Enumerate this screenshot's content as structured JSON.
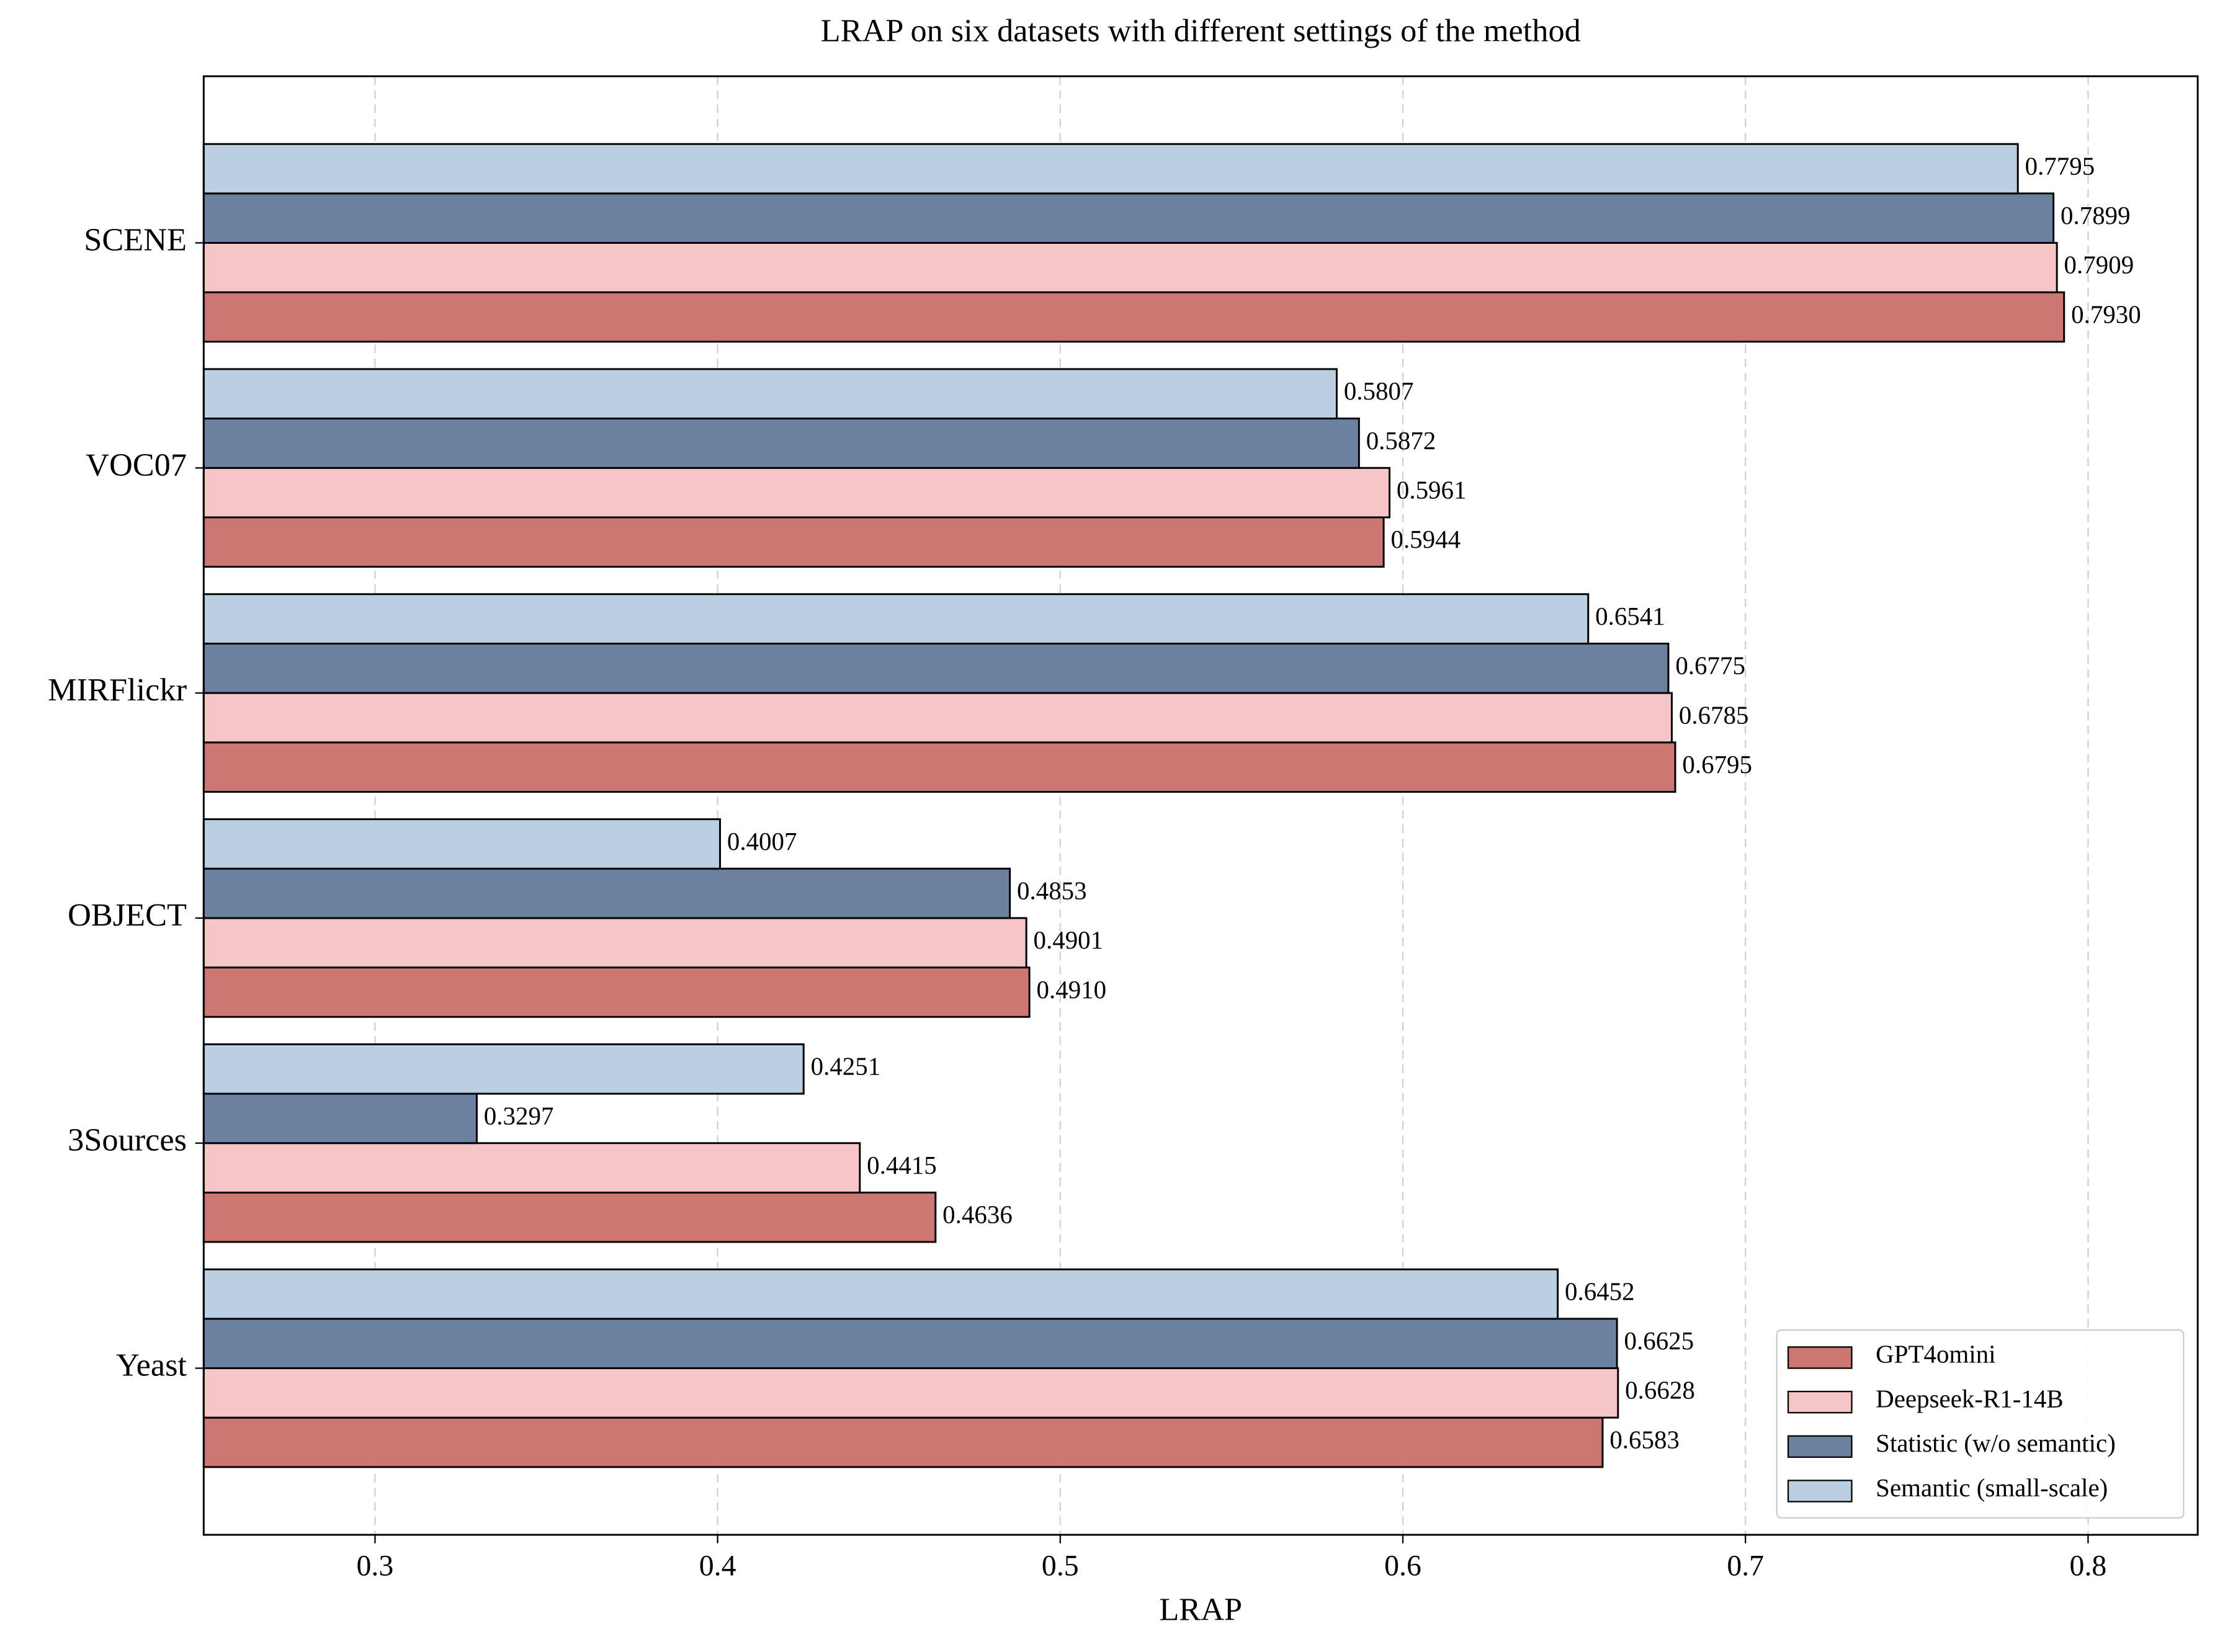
{
  "chart_data": {
    "type": "barh",
    "title": "LRAP on six datasets with different settings of the method",
    "xlabel": "LRAP",
    "categories": [
      "SCENE",
      "VOC07",
      "MIRFlickr",
      "OBJECT",
      "3Sources",
      "Yeast"
    ],
    "series": [
      {
        "name": "GPT4omini",
        "color": "#cd7674",
        "values": [
          0.793,
          0.5944,
          0.6795,
          0.491,
          0.4636,
          0.6583
        ],
        "value_labels": [
          "0.7930",
          "0.5944",
          "0.6795",
          "0.4910",
          "0.4636",
          "0.6583"
        ]
      },
      {
        "name": "Deepseek-R1-14B",
        "color": "#f6c6c7",
        "values": [
          0.7909,
          0.5961,
          0.6785,
          0.4901,
          0.4415,
          0.6628
        ],
        "value_labels": [
          "0.7909",
          "0.5961",
          "0.6785",
          "0.4901",
          "0.4415",
          "0.6628"
        ]
      },
      {
        "name": "Statistic (w/o semantic)",
        "color": "#6c819f",
        "values": [
          0.7899,
          0.5872,
          0.6775,
          0.4853,
          0.3297,
          0.6625
        ],
        "value_labels": [
          "0.7899",
          "0.5872",
          "0.6775",
          "0.4853",
          "0.3297",
          "0.6625"
        ]
      },
      {
        "name": "Semantic (small-scale)",
        "color": "#bad0e2",
        "values": [
          0.7795,
          0.5807,
          0.6541,
          0.4007,
          0.4251,
          0.6452
        ],
        "value_labels": [
          "0.7795",
          "0.5807",
          "0.6541",
          "0.4007",
          "0.4251",
          "0.6452"
        ]
      }
    ],
    "xlim": [
      0.25,
      0.832
    ],
    "xticks": [
      0.3,
      0.4,
      0.5,
      0.6,
      0.7,
      0.8
    ],
    "grid": true,
    "legend": "lower right"
  }
}
